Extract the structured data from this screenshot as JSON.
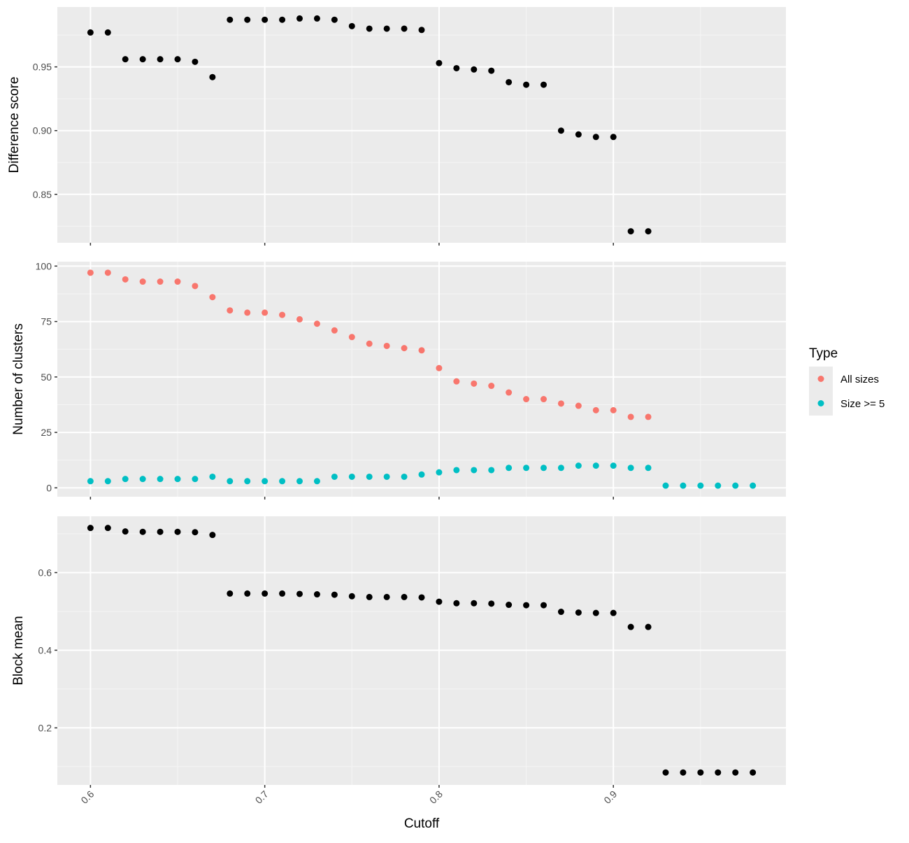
{
  "chart_data": {
    "type": "scatter",
    "xlabel": "Cutoff",
    "xlim": [
      0.581,
      0.999
    ],
    "xticks": [
      0.6,
      0.7,
      0.8,
      0.9
    ],
    "xtick_labels": [
      "0.6",
      "0.7",
      "0.8",
      "0.9"
    ],
    "grid": true,
    "legend": {
      "title": "Type",
      "position": "right",
      "entries": [
        {
          "label": "All sizes",
          "color": "#F8766D"
        },
        {
          "label": "Size >= 5",
          "color": "#00BFC4"
        }
      ]
    },
    "panels": [
      {
        "ylabel": "Difference score",
        "ylim": [
          0.812,
          0.997
        ],
        "yticks": [
          0.85,
          0.9,
          0.95
        ],
        "ytick_labels": [
          "0.85",
          "0.90",
          "0.95"
        ],
        "series": [
          {
            "color": "#000000",
            "x": [
              0.6,
              0.61,
              0.62,
              0.63,
              0.64,
              0.65,
              0.66,
              0.67,
              0.68,
              0.69,
              0.7,
              0.71,
              0.72,
              0.73,
              0.74,
              0.75,
              0.76,
              0.77,
              0.78,
              0.79,
              0.8,
              0.81,
              0.82,
              0.83,
              0.84,
              0.85,
              0.86,
              0.87,
              0.88,
              0.89,
              0.9,
              0.91,
              0.92
            ],
            "y": [
              0.977,
              0.977,
              0.956,
              0.956,
              0.956,
              0.956,
              0.954,
              0.942,
              0.987,
              0.987,
              0.987,
              0.987,
              0.988,
              0.988,
              0.987,
              0.982,
              0.98,
              0.98,
              0.98,
              0.979,
              0.953,
              0.949,
              0.948,
              0.947,
              0.938,
              0.936,
              0.936,
              0.9,
              0.897,
              0.895,
              0.895,
              0.821,
              0.821
            ]
          }
        ]
      },
      {
        "ylabel": "Number of clusters",
        "ylim": [
          -4,
          102
        ],
        "yticks": [
          0,
          25,
          50,
          75,
          100
        ],
        "ytick_labels": [
          "0",
          "25",
          "50",
          "75",
          "100"
        ],
        "series": [
          {
            "name": "All sizes",
            "color": "#F8766D",
            "x": [
              0.6,
              0.61,
              0.62,
              0.63,
              0.64,
              0.65,
              0.66,
              0.67,
              0.68,
              0.69,
              0.7,
              0.71,
              0.72,
              0.73,
              0.74,
              0.75,
              0.76,
              0.77,
              0.78,
              0.79,
              0.8,
              0.81,
              0.82,
              0.83,
              0.84,
              0.85,
              0.86,
              0.87,
              0.88,
              0.89,
              0.9,
              0.91,
              0.92
            ],
            "y": [
              97,
              97,
              94,
              93,
              93,
              93,
              91,
              86,
              80,
              79,
              79,
              78,
              76,
              74,
              71,
              68,
              65,
              64,
              63,
              62,
              54,
              48,
              47,
              46,
              43,
              40,
              40,
              38,
              37,
              35,
              35,
              32,
              32
            ]
          },
          {
            "name": "Size >= 5",
            "color": "#00BFC4",
            "x": [
              0.6,
              0.61,
              0.62,
              0.63,
              0.64,
              0.65,
              0.66,
              0.67,
              0.68,
              0.69,
              0.7,
              0.71,
              0.72,
              0.73,
              0.74,
              0.75,
              0.76,
              0.77,
              0.78,
              0.79,
              0.8,
              0.81,
              0.82,
              0.83,
              0.84,
              0.85,
              0.86,
              0.87,
              0.88,
              0.89,
              0.9,
              0.91,
              0.92,
              0.93,
              0.94,
              0.95,
              0.96,
              0.97,
              0.98
            ],
            "y": [
              3,
              3,
              4,
              4,
              4,
              4,
              4,
              5,
              3,
              3,
              3,
              3,
              3,
              3,
              5,
              5,
              5,
              5,
              5,
              6,
              7,
              8,
              8,
              8,
              9,
              9,
              9,
              9,
              10,
              10,
              10,
              9,
              9,
              1,
              1,
              1,
              1,
              1,
              1
            ]
          }
        ]
      },
      {
        "ylabel": "Block mean",
        "ylim": [
          0.053,
          0.745
        ],
        "yticks": [
          0.2,
          0.4,
          0.6
        ],
        "ytick_labels": [
          "0.2",
          "0.4",
          "0.6"
        ],
        "series": [
          {
            "color": "#000000",
            "x": [
              0.6,
              0.61,
              0.62,
              0.63,
              0.64,
              0.65,
              0.66,
              0.67,
              0.68,
              0.69,
              0.7,
              0.71,
              0.72,
              0.73,
              0.74,
              0.75,
              0.76,
              0.77,
              0.78,
              0.79,
              0.8,
              0.81,
              0.82,
              0.83,
              0.84,
              0.85,
              0.86,
              0.87,
              0.88,
              0.89,
              0.9,
              0.91,
              0.92,
              0.93,
              0.94,
              0.95,
              0.96,
              0.97,
              0.98
            ],
            "y": [
              0.715,
              0.715,
              0.706,
              0.705,
              0.705,
              0.705,
              0.704,
              0.697,
              0.546,
              0.546,
              0.546,
              0.546,
              0.545,
              0.544,
              0.543,
              0.539,
              0.537,
              0.537,
              0.537,
              0.536,
              0.525,
              0.521,
              0.521,
              0.52,
              0.517,
              0.516,
              0.516,
              0.499,
              0.497,
              0.496,
              0.496,
              0.46,
              0.46,
              0.085,
              0.085,
              0.085,
              0.085,
              0.085,
              0.085
            ]
          }
        ]
      }
    ]
  }
}
